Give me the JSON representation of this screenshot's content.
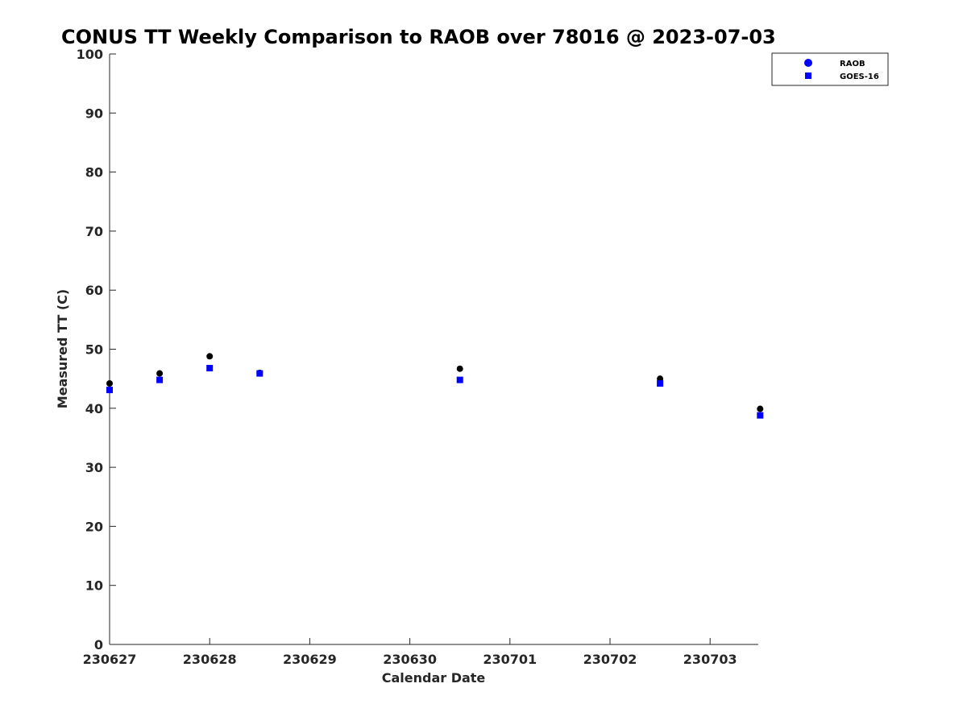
{
  "chart_data": {
    "type": "scatter",
    "title": "CONUS TT Weekly Comparison to RAOB over 78016 @ 2023-07-03",
    "xlabel": "Calendar Date",
    "ylabel": "Measured TT (C)",
    "x_ticks": [
      "230627",
      "230628",
      "230629",
      "230630",
      "230701",
      "230702",
      "230703"
    ],
    "xlim": [
      "230627 00Z",
      "230703 12Z"
    ],
    "ylim": [
      0,
      100
    ],
    "y_ticks": [
      0,
      10,
      20,
      30,
      40,
      50,
      60,
      70,
      80,
      90,
      100
    ],
    "grid": false,
    "legend_position": "top-right",
    "series": [
      {
        "name": "RAOB",
        "marker": "circle",
        "color": "#000000",
        "legend_color": "#0000ff",
        "points": [
          {
            "x": "230627 00Z",
            "y": 44.2
          },
          {
            "x": "230627 12Z",
            "y": 45.9
          },
          {
            "x": "230628 00Z",
            "y": 48.8
          },
          {
            "x": "230628 12Z",
            "y": 46.0
          },
          {
            "x": "230630 12Z",
            "y": 46.7
          },
          {
            "x": "230702 12Z",
            "y": 45.0
          },
          {
            "x": "230703 12Z",
            "y": 39.9
          }
        ]
      },
      {
        "name": "GOES-16",
        "marker": "square",
        "color": "#0000ff",
        "legend_color": "#0000ff",
        "points": [
          {
            "x": "230627 00Z",
            "y": 43.1
          },
          {
            "x": "230627 12Z",
            "y": 44.8
          },
          {
            "x": "230628 00Z",
            "y": 46.8
          },
          {
            "x": "230628 12Z",
            "y": 45.9
          },
          {
            "x": "230630 12Z",
            "y": 44.8
          },
          {
            "x": "230702 12Z",
            "y": 44.2
          },
          {
            "x": "230703 12Z",
            "y": 38.8
          }
        ]
      }
    ]
  }
}
